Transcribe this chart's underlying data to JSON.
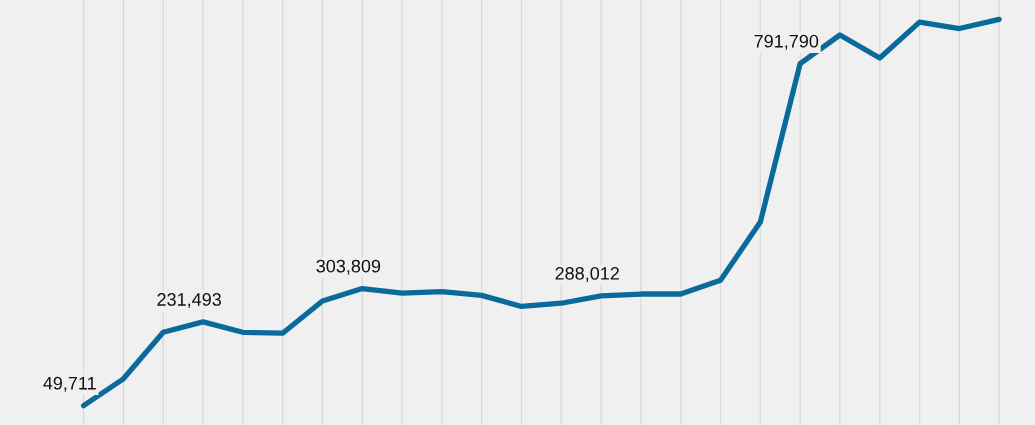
{
  "chart_data": {
    "type": "line",
    "categories": [
      null,
      null,
      null,
      null,
      null,
      null,
      null,
      null,
      null,
      null,
      null,
      null,
      null,
      null,
      null,
      null,
      null,
      null,
      null,
      null,
      null,
      null,
      null,
      null
    ],
    "series": [
      {
        "color": "#0b6a9c",
        "values": [
          49711,
          108000,
          209000,
          231493,
          209000,
          207000,
          277000,
          303809,
          294000,
          297000,
          289000,
          265000,
          272000,
          288012,
          292000,
          292000,
          322000,
          448000,
          791790,
          854000,
          804000,
          882000,
          868000,
          888000
        ],
        "value_labels": [
          "49,711",
          null,
          null,
          "231,493",
          null,
          null,
          null,
          "303,809",
          null,
          null,
          null,
          null,
          null,
          "288,012",
          null,
          null,
          null,
          null,
          "791,790",
          null,
          null,
          null,
          null,
          null
        ]
      }
    ],
    "grid": "x",
    "marker": "none",
    "line_style": "solid",
    "legend": false
  }
}
